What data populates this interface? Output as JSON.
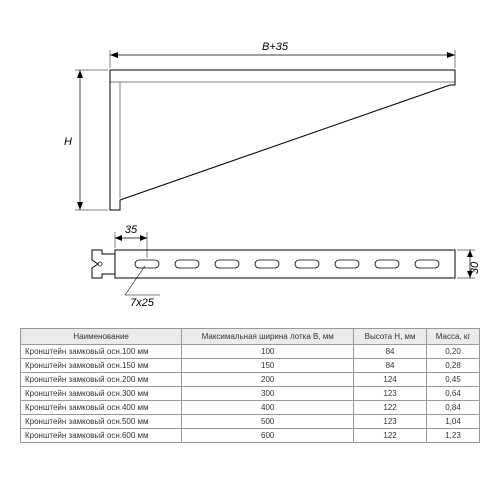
{
  "diagram": {
    "top_label": "B+35",
    "left_label": "H",
    "slot_offset_label": "35",
    "slot_dim_label": "7x25",
    "height_label": "30",
    "stroke_color": "#000000",
    "fill_color": "#ffffff",
    "line_width": 1
  },
  "table": {
    "columns": [
      "Наименование",
      "Максимальная ширина лотка B, мм",
      "Высота H, мм",
      "Масса, кг"
    ],
    "rows": [
      [
        "Кронштейн замковый осн.100 мм",
        "100",
        "84",
        "0,20"
      ],
      [
        "Кронштейн замковый осн.150 мм",
        "150",
        "84",
        "0,28"
      ],
      [
        "Кронштейн замковый осн.200 мм",
        "200",
        "124",
        "0,45"
      ],
      [
        "Кронштейн замковый осн.300 мм",
        "300",
        "123",
        "0,64"
      ],
      [
        "Кронштейн замковый осн.400 мм",
        "400",
        "122",
        "0,84"
      ],
      [
        "Кронштейн замковый осн.500 мм",
        "500",
        "123",
        "1,04"
      ],
      [
        "Кронштейн замковый осн.600 мм",
        "600",
        "122",
        "1,23"
      ]
    ],
    "header_bg": "#ebebeb",
    "border_color": "#999999"
  }
}
